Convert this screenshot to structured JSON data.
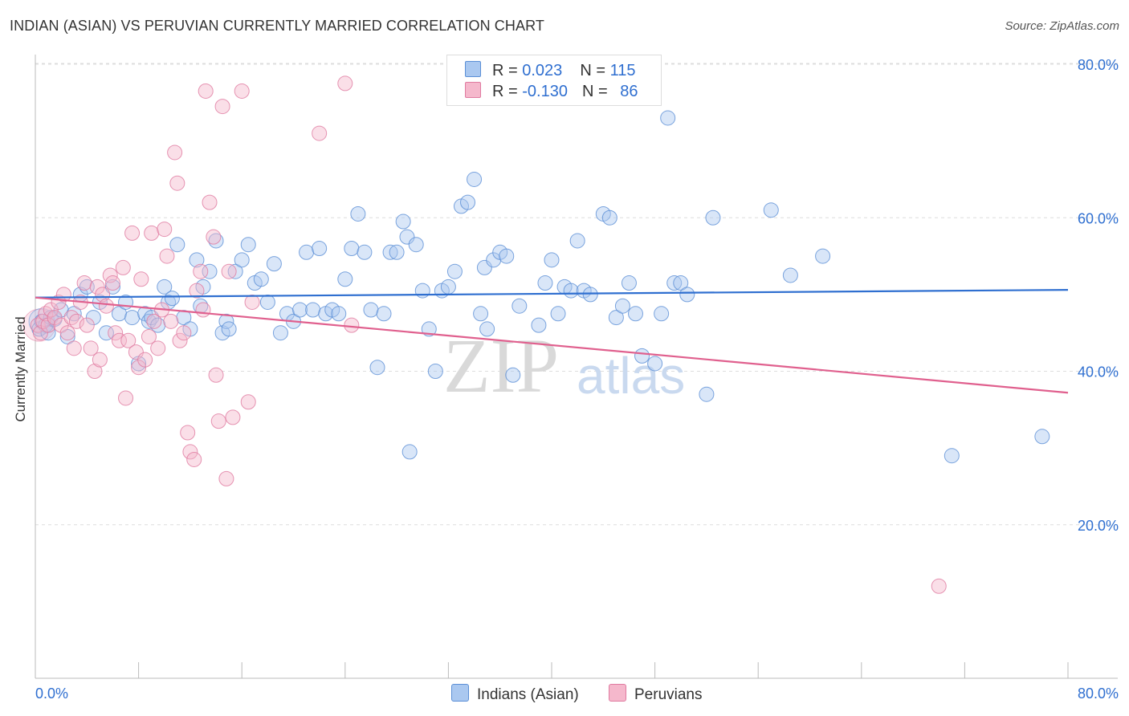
{
  "title": "INDIAN (ASIAN) VS PERUVIAN CURRENTLY MARRIED CORRELATION CHART",
  "source": "Source: ZipAtlas.com",
  "legend": {
    "rows": [
      {
        "r_label": "R = ",
        "r_value": "0.023",
        "n_label": "N = ",
        "n_value": "115"
      },
      {
        "r_label": "R = ",
        "r_value": "-0.130",
        "n_label": "N = ",
        "n_value": "86"
      }
    ]
  },
  "bottom_legend": [
    "Indians (Asian)",
    "Peruvians"
  ],
  "colors": {
    "blue_fill": "#aac8f0",
    "blue_stroke": "#5b8fd6",
    "blue_line": "#2f6fd0",
    "pink_fill": "#f5b8cc",
    "pink_stroke": "#e07aa0",
    "pink_line": "#e0608e",
    "tick_text": "#2f6fd0",
    "grid": "#dddddd"
  },
  "watermark": {
    "zip": "ZIP",
    "atlas": "atlas"
  },
  "chart_data": {
    "type": "scatter",
    "xlabel": "",
    "ylabel": "Currently Married",
    "xlim": [
      0,
      80
    ],
    "ylim": [
      0,
      80
    ],
    "x_tick_labels": [
      "0.0%",
      "80.0%"
    ],
    "y_ticks": [
      20,
      40,
      60,
      80
    ],
    "y_tick_labels": [
      "20.0%",
      "40.0%",
      "60.0%",
      "80.0%"
    ],
    "grid": true,
    "legend_position": "top-center",
    "series": [
      {
        "name": "Indians (Asian)",
        "R": 0.023,
        "N": 115,
        "trend": [
          [
            0,
            49.6
          ],
          [
            80,
            50.6
          ]
        ],
        "points": [
          [
            0.3,
            45.5
          ],
          [
            0.5,
            46.5
          ],
          [
            0.8,
            46
          ],
          [
            1,
            45
          ],
          [
            1.2,
            47
          ],
          [
            1.5,
            46.8
          ],
          [
            2,
            48
          ],
          [
            2.5,
            44.5
          ],
          [
            3,
            47.5
          ],
          [
            3.5,
            50
          ],
          [
            4,
            51
          ],
          [
            4.5,
            47
          ],
          [
            5,
            49
          ],
          [
            5.5,
            45
          ],
          [
            6,
            51
          ],
          [
            6.5,
            47.5
          ],
          [
            7,
            49
          ],
          [
            7.5,
            47
          ],
          [
            8,
            41
          ],
          [
            8.5,
            47.5
          ],
          [
            8.8,
            46.5
          ],
          [
            9,
            47
          ],
          [
            9.5,
            46
          ],
          [
            10,
            51
          ],
          [
            10.3,
            49
          ],
          [
            10.6,
            49.5
          ],
          [
            11,
            56.5
          ],
          [
            11.5,
            47
          ],
          [
            12,
            45.5
          ],
          [
            12.5,
            54.5
          ],
          [
            12.8,
            48.5
          ],
          [
            13,
            51
          ],
          [
            13.5,
            53
          ],
          [
            14,
            57
          ],
          [
            14.5,
            45
          ],
          [
            14.8,
            46.5
          ],
          [
            15,
            45.5
          ],
          [
            15.5,
            53
          ],
          [
            16,
            54.5
          ],
          [
            16.5,
            56.5
          ],
          [
            17,
            51.5
          ],
          [
            17.5,
            52
          ],
          [
            18,
            49
          ],
          [
            18.5,
            54
          ],
          [
            19,
            45
          ],
          [
            19.5,
            47.5
          ],
          [
            20,
            46.5
          ],
          [
            20.5,
            48
          ],
          [
            21,
            55.5
          ],
          [
            21.5,
            48
          ],
          [
            22,
            56
          ],
          [
            22.5,
            47.5
          ],
          [
            23,
            48
          ],
          [
            23.5,
            47.5
          ],
          [
            24,
            52
          ],
          [
            24.5,
            56
          ],
          [
            25,
            60.5
          ],
          [
            25.5,
            55.5
          ],
          [
            26,
            48
          ],
          [
            26.5,
            40.5
          ],
          [
            27,
            47.5
          ],
          [
            27.5,
            55.5
          ],
          [
            28,
            55.5
          ],
          [
            28.5,
            59.5
          ],
          [
            28.8,
            57.5
          ],
          [
            29,
            29.5
          ],
          [
            29.5,
            56.5
          ],
          [
            30,
            50.5
          ],
          [
            30.5,
            45.5
          ],
          [
            31,
            40
          ],
          [
            31.5,
            50.5
          ],
          [
            32,
            51
          ],
          [
            32.5,
            53
          ],
          [
            33,
            61.5
          ],
          [
            33.5,
            62
          ],
          [
            34,
            65
          ],
          [
            34.5,
            47.5
          ],
          [
            34.8,
            53.5
          ],
          [
            35,
            45.5
          ],
          [
            35.5,
            54.5
          ],
          [
            36,
            55.5
          ],
          [
            36.5,
            55
          ],
          [
            37,
            39.5
          ],
          [
            37.5,
            48.5
          ],
          [
            39,
            46
          ],
          [
            39.5,
            51.5
          ],
          [
            40,
            54.5
          ],
          [
            40.5,
            47.5
          ],
          [
            41,
            51
          ],
          [
            41.5,
            50.5
          ],
          [
            42,
            57
          ],
          [
            42.5,
            50.5
          ],
          [
            43,
            50
          ],
          [
            44,
            60.5
          ],
          [
            44.5,
            60
          ],
          [
            45,
            47
          ],
          [
            45.5,
            48.5
          ],
          [
            46,
            51.5
          ],
          [
            46.5,
            47.5
          ],
          [
            47,
            42
          ],
          [
            48,
            41
          ],
          [
            48.5,
            47.5
          ],
          [
            49,
            73
          ],
          [
            49.5,
            51.5
          ],
          [
            50,
            51.5
          ],
          [
            50.5,
            50
          ],
          [
            52,
            37
          ],
          [
            52.5,
            60
          ],
          [
            57,
            61
          ],
          [
            58.5,
            52.5
          ],
          [
            61,
            55
          ],
          [
            71,
            29
          ],
          [
            78,
            31.5
          ]
        ]
      },
      {
        "name": "Peruvians",
        "R": -0.13,
        "N": 86,
        "trend": [
          [
            0,
            49.6
          ],
          [
            80,
            37.2
          ]
        ],
        "points": [
          [
            0.2,
            46
          ],
          [
            0.4,
            45
          ],
          [
            0.6,
            46.5
          ],
          [
            0.8,
            47.5
          ],
          [
            1,
            46
          ],
          [
            1.2,
            48
          ],
          [
            1.5,
            47
          ],
          [
            1.8,
            49
          ],
          [
            2,
            46
          ],
          [
            2.2,
            50
          ],
          [
            2.5,
            45
          ],
          [
            2.8,
            47
          ],
          [
            3,
            43
          ],
          [
            3.2,
            46.5
          ],
          [
            3.5,
            49
          ],
          [
            3.8,
            51.5
          ],
          [
            4,
            46
          ],
          [
            4.3,
            43
          ],
          [
            4.6,
            40
          ],
          [
            4.8,
            51
          ],
          [
            5,
            41.5
          ],
          [
            5.2,
            50
          ],
          [
            5.5,
            48.5
          ],
          [
            5.8,
            52.5
          ],
          [
            6,
            51.5
          ],
          [
            6.2,
            45
          ],
          [
            6.5,
            44
          ],
          [
            6.8,
            53.5
          ],
          [
            7,
            36.5
          ],
          [
            7.2,
            44
          ],
          [
            7.5,
            58
          ],
          [
            7.8,
            42.5
          ],
          [
            8,
            40.5
          ],
          [
            8.2,
            52
          ],
          [
            8.5,
            41.5
          ],
          [
            8.8,
            44.5
          ],
          [
            9,
            58
          ],
          [
            9.2,
            46.5
          ],
          [
            9.5,
            43
          ],
          [
            9.8,
            48
          ],
          [
            10,
            58.5
          ],
          [
            10.2,
            55
          ],
          [
            10.5,
            46.5
          ],
          [
            10.8,
            68.5
          ],
          [
            11,
            64.5
          ],
          [
            11.2,
            44
          ],
          [
            11.5,
            45
          ],
          [
            11.8,
            32
          ],
          [
            12,
            29.5
          ],
          [
            12.3,
            28.5
          ],
          [
            12.5,
            50.5
          ],
          [
            12.8,
            53
          ],
          [
            13,
            48
          ],
          [
            13.2,
            76.5
          ],
          [
            13.5,
            62
          ],
          [
            13.8,
            57.5
          ],
          [
            14,
            39.5
          ],
          [
            14.2,
            33.5
          ],
          [
            14.5,
            74.5
          ],
          [
            14.8,
            26
          ],
          [
            15,
            53
          ],
          [
            15.3,
            34
          ],
          [
            16,
            76.5
          ],
          [
            16.5,
            36
          ],
          [
            16.8,
            49
          ],
          [
            22,
            71
          ],
          [
            24,
            77.5
          ],
          [
            24.5,
            46
          ],
          [
            70,
            12
          ]
        ]
      }
    ]
  }
}
